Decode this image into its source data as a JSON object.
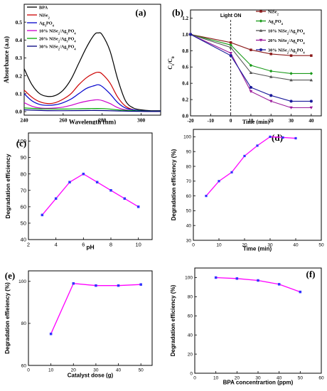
{
  "chart_data": [
    {
      "panel": "(a)",
      "type": "line",
      "xlabel": "Wavelength (nm)",
      "ylabel": "Absorbance (a.u)",
      "xlim": [
        240,
        310
      ],
      "ylim": [
        -0.02,
        0.6
      ],
      "xticks": [
        240,
        260,
        280,
        300
      ],
      "yticks": [
        0.0,
        0.1,
        0.2,
        0.3,
        0.4,
        0.5
      ],
      "ytick_labels": [
        "0.0",
        "0.1",
        "0.2",
        "0.3",
        "0.4",
        "0.5"
      ],
      "legend_placement": "top-left",
      "legend": [
        "BPA",
        "NiSe2",
        "Ag3PO4",
        "10% NiSe2/Ag3PO4",
        "20% NiSe2/Ag3PO4",
        "30% NiSe2/Ag3PO4"
      ],
      "series": [
        {
          "name": "BPA",
          "color": "#000000",
          "x": [
            240,
            244,
            248,
            252,
            256,
            260,
            264,
            268,
            272,
            276,
            278,
            280,
            284,
            288,
            292,
            296,
            300,
            305,
            310
          ],
          "values": [
            0.24,
            0.15,
            0.1,
            0.085,
            0.09,
            0.12,
            0.18,
            0.27,
            0.36,
            0.43,
            0.44,
            0.43,
            0.34,
            0.18,
            0.06,
            0.02,
            0.01,
            0.005,
            0.005
          ]
        },
        {
          "name": "NiSe2",
          "color": "#cc0000",
          "x": [
            240,
            244,
            248,
            252,
            256,
            260,
            264,
            268,
            272,
            276,
            278,
            280,
            284,
            288,
            292,
            296,
            300,
            305,
            310
          ],
          "values": [
            0.12,
            0.08,
            0.055,
            0.045,
            0.05,
            0.07,
            0.1,
            0.15,
            0.19,
            0.215,
            0.22,
            0.21,
            0.16,
            0.08,
            0.03,
            0.01,
            0.005,
            0.003,
            0.003
          ]
        },
        {
          "name": "Ag3PO4",
          "color": "#0000cc",
          "x": [
            240,
            244,
            248,
            252,
            256,
            260,
            264,
            268,
            272,
            276,
            278,
            280,
            284,
            288,
            292,
            296,
            300,
            305,
            310
          ],
          "values": [
            0.1,
            0.06,
            0.04,
            0.035,
            0.038,
            0.05,
            0.07,
            0.1,
            0.13,
            0.145,
            0.15,
            0.14,
            0.1,
            0.05,
            0.02,
            0.01,
            0.005,
            0.003,
            0.003
          ]
        },
        {
          "name": "10% NiSe2/Ag3PO4",
          "color": "#cc00cc",
          "x": [
            240,
            244,
            248,
            252,
            256,
            260,
            264,
            268,
            272,
            276,
            278,
            280,
            284,
            288,
            292,
            296,
            300,
            305,
            310
          ],
          "values": [
            0.05,
            0.03,
            0.02,
            0.018,
            0.02,
            0.025,
            0.035,
            0.048,
            0.058,
            0.065,
            0.066,
            0.062,
            0.045,
            0.022,
            0.01,
            0.004,
            0.002,
            0.001,
            0.001
          ]
        },
        {
          "name": "20% NiSe2/Ag3PO4",
          "color": "#00aa00",
          "x": [
            240,
            250,
            260,
            270,
            280,
            290,
            300,
            310
          ],
          "values": [
            0.02,
            0.015,
            0.014,
            0.016,
            0.017,
            0.008,
            0.003,
            0.002
          ]
        },
        {
          "name": "30% NiSe2/Ag3PO4",
          "color": "#000080",
          "x": [
            240,
            250,
            260,
            270,
            280,
            290,
            300,
            310
          ],
          "values": [
            0.01,
            0.006,
            0.005,
            0.006,
            0.006,
            0.003,
            0.001,
            0.001
          ]
        }
      ]
    },
    {
      "panel": "(b)",
      "type": "line",
      "xlabel": "Time (min)",
      "ylabel": "Ct/C0",
      "xlim": [
        -20,
        45
      ],
      "ylim": [
        0.0,
        1.3
      ],
      "xticks": [
        -20,
        -10,
        0,
        10,
        20,
        30,
        40
      ],
      "yticks": [
        0.0,
        0.2,
        0.4,
        0.6,
        0.8,
        1.0,
        1.2
      ],
      "ytick_labels": [
        "0.0",
        "0.2",
        "0.4",
        "0.6",
        "0.8",
        "1.0",
        "1.2"
      ],
      "annotation": "Light ON",
      "annotation_x": 0,
      "legend_placement": "top-right",
      "legend": [
        "NiSe2",
        "Ag3PO4",
        "10% NiSe2/Ag3PO4",
        "20% NiSe2/Ag3PO4",
        "30% NiSe2/Ag3PO4"
      ],
      "x": [
        -20,
        0,
        10,
        20,
        30,
        40
      ],
      "series": [
        {
          "name": "NiSe2",
          "color": "#8b1a1a",
          "values": [
            1.0,
            0.9,
            0.81,
            0.76,
            0.74,
            0.74
          ]
        },
        {
          "name": "Ag3PO4",
          "color": "#1a9a1a",
          "values": [
            1.0,
            0.87,
            0.62,
            0.55,
            0.52,
            0.52
          ]
        },
        {
          "name": "10% NiSe2/Ag3PO4",
          "color": "#555555",
          "values": [
            1.0,
            0.84,
            0.53,
            0.48,
            0.44,
            0.44
          ]
        },
        {
          "name": "20% NiSe2/Ag3PO4",
          "color": "#9a1a9a",
          "values": [
            1.0,
            0.77,
            0.3,
            0.18,
            0.1,
            0.1
          ]
        },
        {
          "name": "30% NiSe2/Ag3PO4",
          "color": "#1a1a9a",
          "values": [
            1.0,
            0.74,
            0.35,
            0.25,
            0.18,
            0.18
          ]
        }
      ]
    },
    {
      "panel": "(c)",
      "type": "line",
      "xlabel": "pH",
      "ylabel": "Degradation efficiency",
      "xlim": [
        2,
        11
      ],
      "ylim": [
        40,
        105
      ],
      "xticks": [
        2,
        4,
        6,
        8,
        10
      ],
      "yticks": [
        40,
        50,
        60,
        70,
        80,
        90,
        100
      ],
      "x": [
        3,
        4,
        5,
        6,
        7,
        8,
        9,
        10
      ],
      "series": [
        {
          "name": "",
          "color": "#ff00ff",
          "marker_color": "#3333ff",
          "values": [
            55,
            65,
            75,
            80,
            75,
            70,
            65,
            60
          ]
        }
      ]
    },
    {
      "panel": "(d)",
      "type": "line",
      "xlabel": "Time (min)",
      "ylabel": "Degradation efficiency (%)",
      "xlim": [
        0,
        50
      ],
      "ylim": [
        30,
        105
      ],
      "xticks": [
        0,
        10,
        20,
        30,
        40,
        50
      ],
      "yticks": [
        30,
        40,
        50,
        60,
        70,
        80,
        90,
        100
      ],
      "x": [
        5,
        10,
        15,
        20,
        25,
        30,
        35,
        40
      ],
      "series": [
        {
          "name": "",
          "color": "#ff00ff",
          "marker_color": "#3333ff",
          "values": [
            60,
            70,
            76,
            87,
            94,
            100,
            99.5,
            99
          ]
        }
      ]
    },
    {
      "panel": "(e)",
      "type": "line",
      "xlabel": "Catalyst dose (g)",
      "ylabel": "Degradation effieiency (%)",
      "xlim": [
        0,
        55
      ],
      "ylim": [
        60,
        105
      ],
      "xticks": [
        0,
        10,
        20,
        30,
        40,
        50
      ],
      "yticks": [
        60,
        80,
        100
      ],
      "x": [
        10,
        20,
        30,
        40,
        50
      ],
      "series": [
        {
          "name": "",
          "color": "#ff00ff",
          "marker_color": "#3333ff",
          "values": [
            75,
            99,
            98,
            98,
            98.5
          ]
        }
      ]
    },
    {
      "panel": "(f)",
      "type": "line",
      "xlabel": "BPA concentrartion (ppm)",
      "ylabel": "Degradation efficiency (%)",
      "xlim": [
        0,
        60
      ],
      "ylim": [
        0,
        110
      ],
      "xticks": [
        0,
        10,
        20,
        30,
        40,
        50,
        60
      ],
      "yticks": [
        0,
        20,
        40,
        60,
        80,
        100
      ],
      "x": [
        10,
        20,
        30,
        40,
        50
      ],
      "series": [
        {
          "name": "",
          "color": "#ff00ff",
          "marker_color": "#3333ff",
          "values": [
            100,
            99,
            97,
            93,
            85
          ]
        }
      ]
    }
  ]
}
